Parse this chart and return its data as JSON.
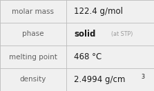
{
  "rows": [
    {
      "label": "molar mass",
      "value": "122.4 g/mol",
      "type": "simple"
    },
    {
      "label": "phase",
      "value_main": "solid",
      "value_note": "(at STP)",
      "type": "phase"
    },
    {
      "label": "melting point",
      "value": "468 °C",
      "type": "simple"
    },
    {
      "label": "density",
      "value": "2.4994 g/cm",
      "superscript": "3",
      "type": "super"
    }
  ],
  "col_split": 0.43,
  "bg_color": "#f0f0f0",
  "border_color": "#bbbbbb",
  "label_color": "#606060",
  "value_color": "#1a1a1a",
  "note_color": "#999999",
  "label_fontsize": 7.5,
  "value_fontsize": 8.5,
  "note_fontsize": 5.8,
  "super_fontsize": 5.8,
  "figwidth": 2.23,
  "figheight": 1.32,
  "dpi": 100
}
